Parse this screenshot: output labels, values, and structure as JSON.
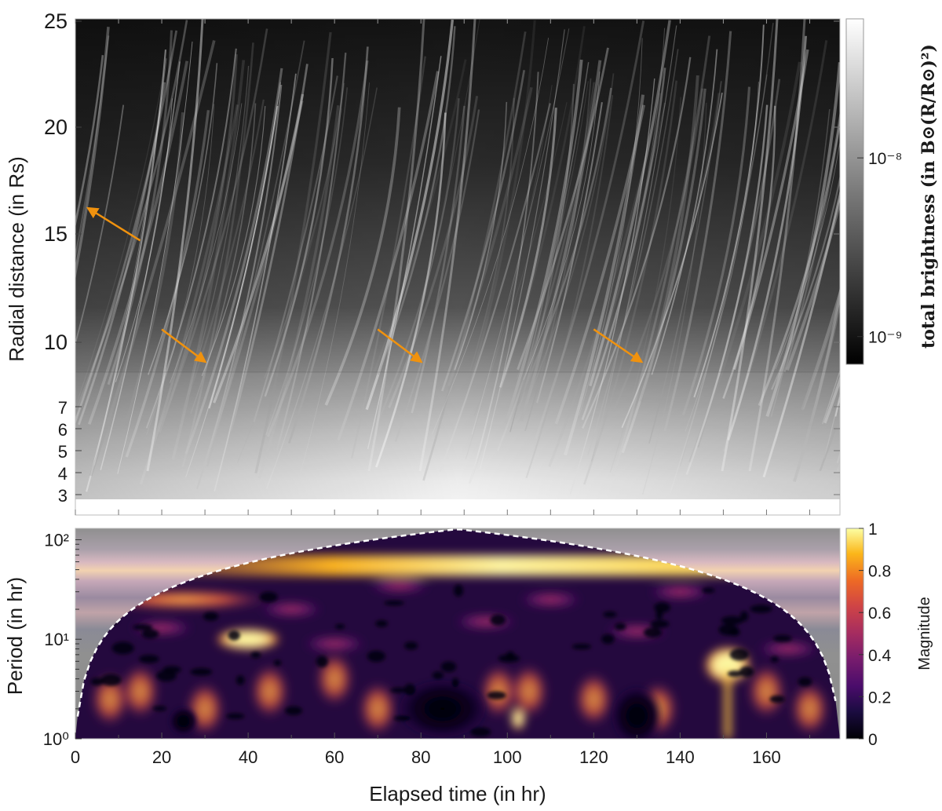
{
  "chart_data": [
    {
      "type": "heatmap",
      "panel": "top",
      "ylabel": "Radial distance (in Rs)",
      "y_ticks": [
        3,
        4,
        5,
        6,
        7,
        10,
        15,
        20,
        25
      ],
      "xlim": [
        0,
        177
      ],
      "colorbar": {
        "label": "total brightness (in B⊙(R/R⊙)²)",
        "scale": "log",
        "range": [
          7e-10,
          6e-08
        ],
        "tick_labels": [
          "10⁻⁹",
          "10⁻⁸"
        ],
        "tick_values": [
          1e-09,
          1e-08
        ],
        "cmap": "gray"
      },
      "annotations": [
        {
          "type": "arrow",
          "from": [
            15,
            14.7
          ],
          "to": [
            3,
            16.2
          ],
          "color": "#f0920e"
        },
        {
          "type": "arrow",
          "from": [
            20,
            10.6
          ],
          "to": [
            30,
            9.1
          ],
          "color": "#f0920e"
        },
        {
          "type": "arrow",
          "from": [
            70,
            10.6
          ],
          "to": [
            80,
            9.1
          ],
          "color": "#f0920e"
        },
        {
          "type": "arrow",
          "from": [
            120,
            10.6
          ],
          "to": [
            131,
            9.1
          ],
          "color": "#f0920e"
        }
      ]
    },
    {
      "type": "heatmap",
      "panel": "bottom",
      "xlabel": "Elapsed time (in hr)",
      "ylabel": "Period (in hr)",
      "x_ticks": [
        0,
        20,
        40,
        60,
        80,
        100,
        120,
        140,
        160
      ],
      "xlim": [
        0,
        177
      ],
      "y_scale": "log",
      "ylim": [
        1,
        130
      ],
      "y_tick_labels": [
        "10⁰",
        "10¹",
        "10²"
      ],
      "colorbar": {
        "label": "Magnitude",
        "range": [
          0,
          1
        ],
        "ticks": [
          "0",
          "0.2",
          "0.4",
          "0.6",
          "0.8",
          "1"
        ],
        "cmap": "inferno"
      },
      "cone_of_influence": true,
      "features": [
        {
          "period": 55,
          "x_range": [
            20,
            177
          ],
          "magnitude": 0.95
        },
        {
          "period": 25,
          "x_range": [
            0,
            60
          ],
          "magnitude": 0.55
        },
        {
          "period": 10,
          "x_range": [
            25,
            55
          ],
          "magnitude": 0.8
        },
        {
          "period": 5.5,
          "x_range": [
            145,
            157
          ],
          "magnitude": 1.0
        },
        {
          "period": 1.6,
          "x_range": [
            100,
            105
          ],
          "magnitude": 1.0
        }
      ]
    }
  ]
}
